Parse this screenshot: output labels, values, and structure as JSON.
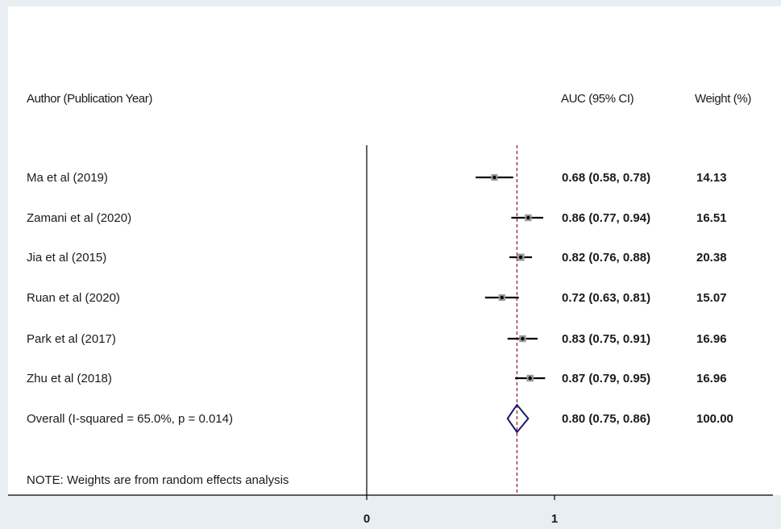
{
  "chart_data": {
    "type": "forest",
    "headers": {
      "study": "Author (Publication Year)",
      "estimate": "AUC (95% CI)",
      "weight": "Weight (%)"
    },
    "studies": [
      {
        "label": "Ma et al  (2019)",
        "auc": 0.68,
        "lower": 0.58,
        "upper": 0.78,
        "ci_text": "0.68 (0.58, 0.78)",
        "weight": "14.13"
      },
      {
        "label": "Zamani et al  (2020)",
        "auc": 0.86,
        "lower": 0.77,
        "upper": 0.94,
        "ci_text": "0.86 (0.77, 0.94)",
        "weight": "16.51"
      },
      {
        "label": "Jia et al  (2015)",
        "auc": 0.82,
        "lower": 0.76,
        "upper": 0.88,
        "ci_text": "0.82 (0.76, 0.88)",
        "weight": "20.38"
      },
      {
        "label": "Ruan et al (2020)",
        "auc": 0.72,
        "lower": 0.63,
        "upper": 0.81,
        "ci_text": "0.72 (0.63, 0.81)",
        "weight": "15.07"
      },
      {
        "label": "Park et al  (2017)",
        "auc": 0.83,
        "lower": 0.75,
        "upper": 0.91,
        "ci_text": "0.83 (0.75, 0.91)",
        "weight": "16.96"
      },
      {
        "label": "Zhu et al   (2018)",
        "auc": 0.87,
        "lower": 0.79,
        "upper": 0.95,
        "ci_text": "0.87 (0.79, 0.95)",
        "weight": "16.96"
      }
    ],
    "overall": {
      "label": "Overall  (I-squared = 65.0%,  p = 0.014)",
      "auc": 0.8,
      "lower": 0.75,
      "upper": 0.86,
      "ci_text": "0.80 (0.75, 0.86)",
      "weight": "100.00"
    },
    "note": "NOTE: Weights are from random effects analysis",
    "x_ticks": [
      0,
      1
    ],
    "x_tick_labels": [
      "0",
      "1"
    ],
    "reference_line": 0,
    "pooled_line_color": "#8b1a1a",
    "diamond_color": "#1a1a6e"
  }
}
